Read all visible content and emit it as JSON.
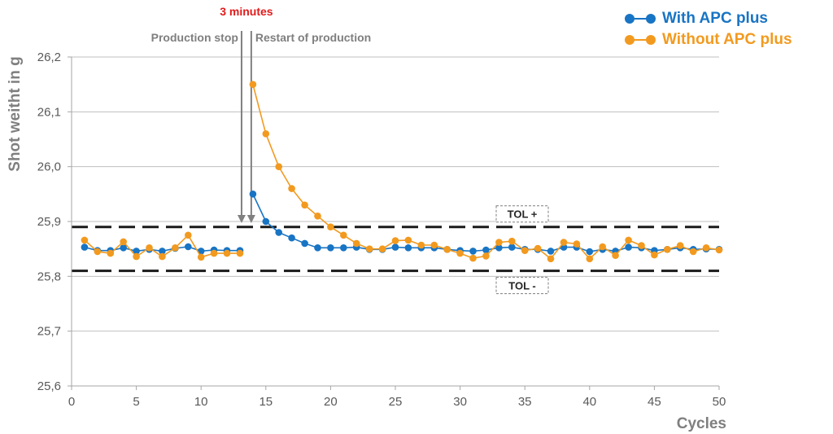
{
  "chart_data": {
    "type": "line",
    "title": "",
    "xlabel": "Cycles",
    "ylabel": "Shot weitht in g",
    "xlim": [
      0,
      50
    ],
    "ylim": [
      25.6,
      26.2
    ],
    "x_ticks": [
      0,
      5,
      10,
      15,
      20,
      25,
      30,
      35,
      40,
      45,
      50
    ],
    "x_tick_labels": [
      "0",
      "5",
      "10",
      "15",
      "20",
      "25",
      "30",
      "35",
      "40",
      "45",
      "50"
    ],
    "y_ticks": [
      25.6,
      25.7,
      25.8,
      25.9,
      26.0,
      26.1,
      26.2
    ],
    "y_tick_labels": [
      "25,6",
      "25,7",
      "25,8",
      "25,9",
      "26,0",
      "26,1",
      "26,2"
    ],
    "grid": true,
    "legend_position": "top-right",
    "series": [
      {
        "name": "With APC plus",
        "color": "#1874c4",
        "segments": [
          {
            "x": [
              1,
              2,
              3,
              4,
              5,
              6,
              7,
              8,
              9,
              10,
              11,
              12,
              13
            ],
            "y": [
              25.853,
              25.847,
              25.847,
              25.852,
              25.846,
              25.849,
              25.846,
              25.851,
              25.854,
              25.846,
              25.848,
              25.847,
              25.847
            ]
          },
          {
            "x": [
              14,
              15,
              16,
              17,
              18,
              19,
              20,
              21,
              22,
              23,
              24,
              25,
              26,
              27,
              28,
              29,
              30,
              31,
              32,
              33,
              34,
              35,
              36,
              37,
              38,
              39,
              40,
              41,
              42,
              43,
              44,
              45,
              46,
              47,
              48,
              49,
              50
            ],
            "y": [
              25.95,
              25.9,
              25.88,
              25.87,
              25.86,
              25.852,
              25.852,
              25.852,
              25.853,
              25.849,
              25.849,
              25.853,
              25.852,
              25.852,
              25.852,
              25.849,
              25.847,
              25.846,
              25.848,
              25.852,
              25.853,
              25.849,
              25.849,
              25.846,
              25.853,
              25.853,
              25.845,
              25.849,
              25.846,
              25.853,
              25.852,
              25.847,
              25.849,
              25.852,
              25.849,
              25.85,
              25.849
            ]
          }
        ]
      },
      {
        "name": "Without APC plus",
        "color": "#f29a1f",
        "segments": [
          {
            "x": [
              1,
              2,
              3,
              4,
              5,
              6,
              7,
              8,
              9,
              10,
              11,
              12,
              13
            ],
            "y": [
              25.866,
              25.845,
              25.842,
              25.863,
              25.836,
              25.852,
              25.836,
              25.852,
              25.875,
              25.835,
              25.842,
              25.842,
              25.842
            ]
          },
          {
            "x": [
              14,
              15,
              16,
              17,
              18,
              19,
              20,
              21,
              22,
              23,
              24,
              25,
              26,
              27,
              28,
              29,
              30,
              31,
              32,
              33,
              34,
              35,
              36,
              37,
              38,
              39,
              40,
              41,
              42,
              43,
              44,
              45,
              46,
              47,
              48,
              49,
              50
            ],
            "y": [
              26.15,
              26.06,
              26.0,
              25.96,
              25.93,
              25.91,
              25.89,
              25.875,
              25.86,
              25.85,
              25.85,
              25.865,
              25.866,
              25.857,
              25.857,
              25.849,
              25.842,
              25.833,
              25.837,
              25.862,
              25.864,
              25.847,
              25.851,
              25.832,
              25.862,
              25.859,
              25.832,
              25.854,
              25.838,
              25.866,
              25.856,
              25.839,
              25.849,
              25.856,
              25.845,
              25.852,
              25.848
            ]
          }
        ]
      }
    ],
    "tolerance_lines": [
      {
        "label": "TOL +",
        "value": 25.89
      },
      {
        "label": "TOL -",
        "value": 25.81
      }
    ],
    "annotations": {
      "duration": {
        "label": "3 minutes",
        "color": "#e11b1b"
      },
      "stop": {
        "label": "Production stop",
        "x": 13
      },
      "restart": {
        "label": "Restart of production",
        "x": 14
      }
    }
  }
}
